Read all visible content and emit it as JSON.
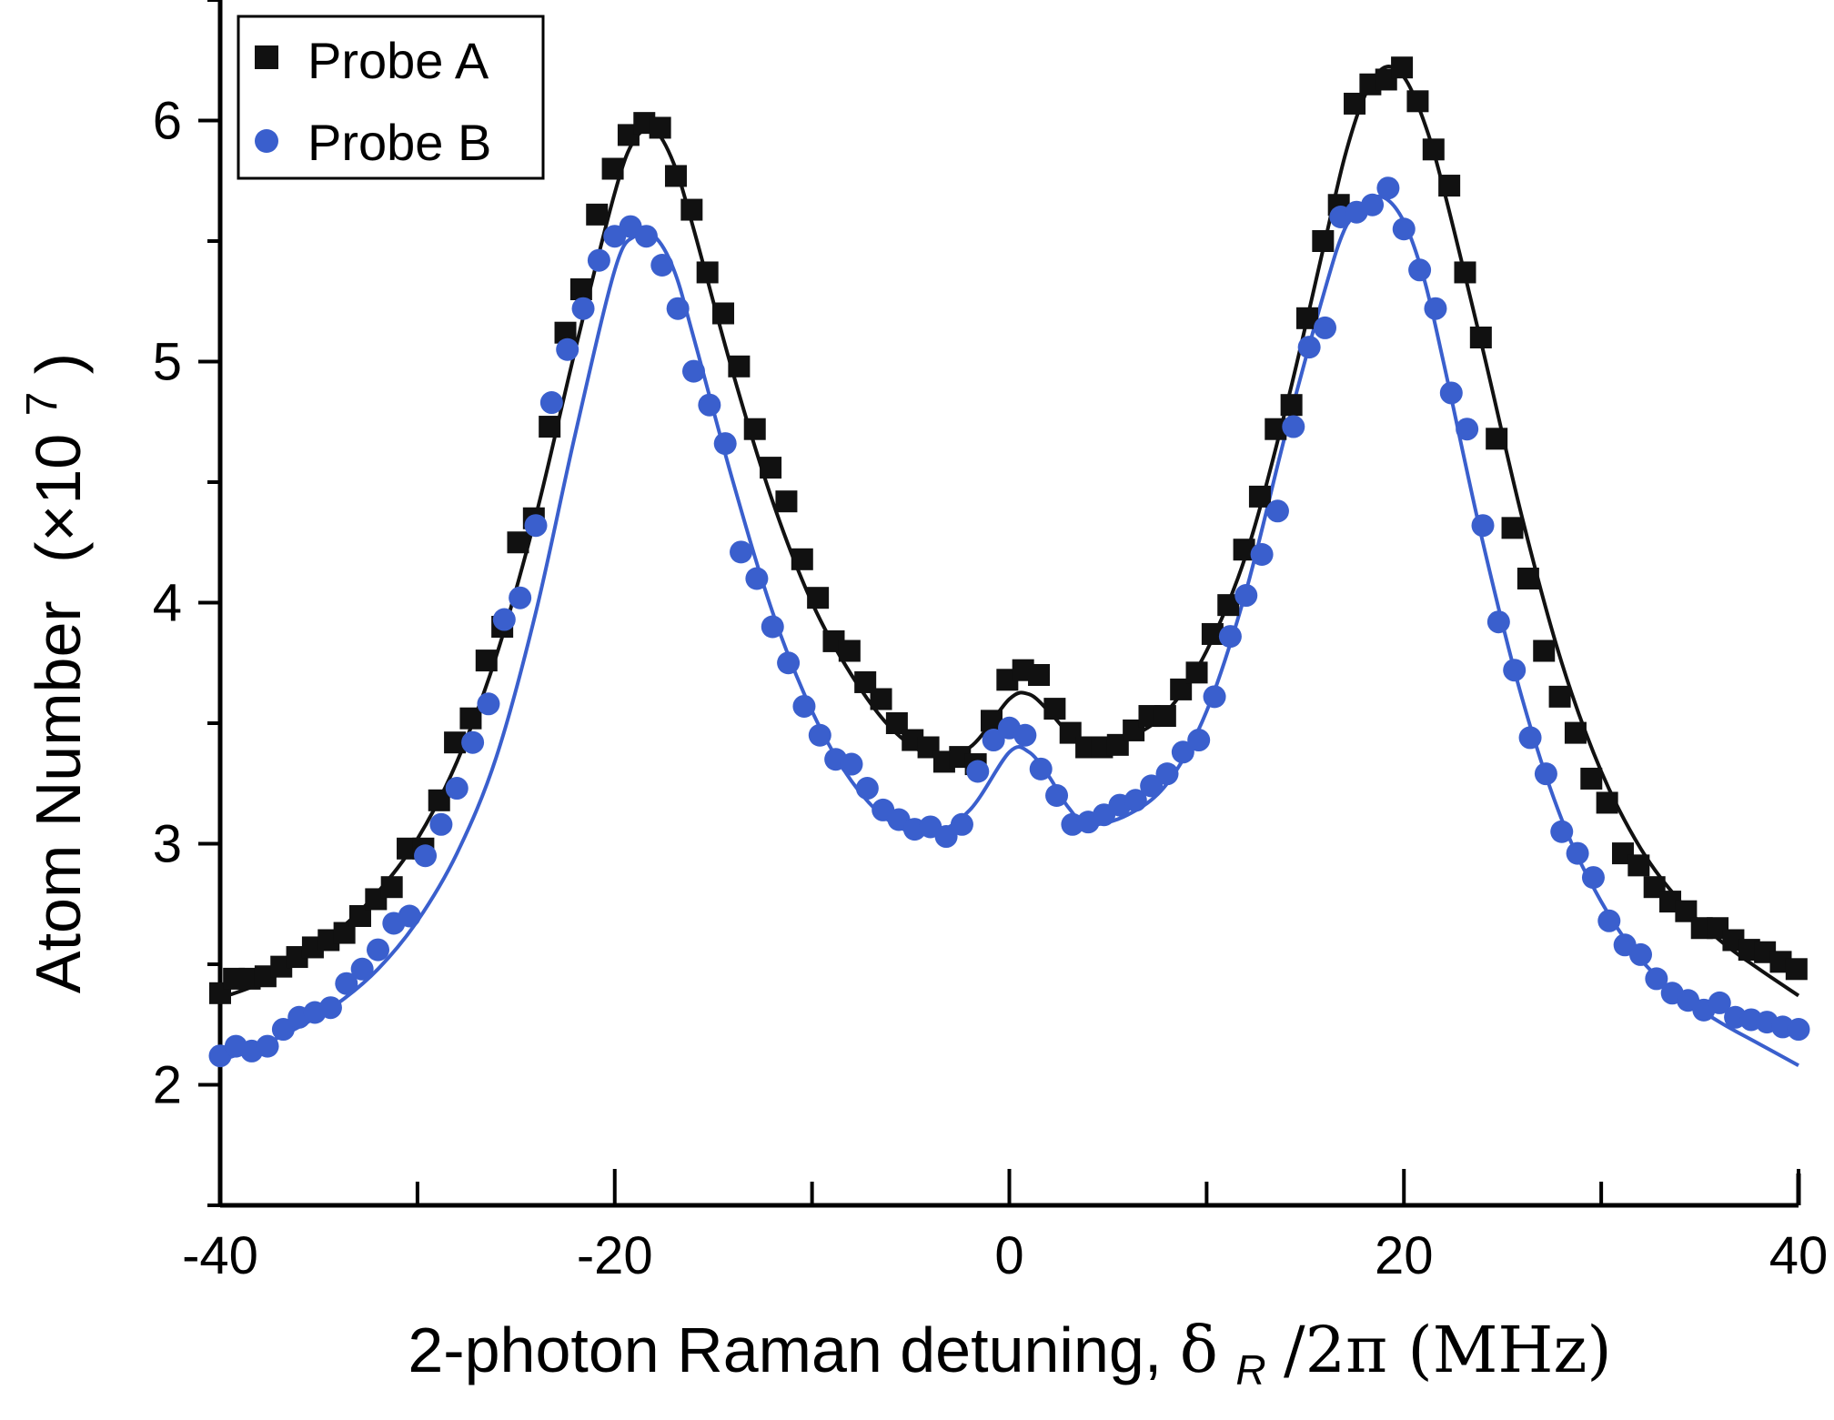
{
  "chart_data": {
    "type": "scatter",
    "xlabel": "2-photon Raman detuning, δ_R/2π (MHz)",
    "xlabel_parts": {
      "pre": "2-photon Raman detuning, ",
      "delta": "δ",
      "sub": "R",
      "post": "/2π (MHz)"
    },
    "ylabel": "Atom Number (×10^7)",
    "ylabel_parts": {
      "main": "Atom Number",
      "open": "(×10",
      "sup": "7",
      "close": ")"
    },
    "xlim": [
      -40,
      40
    ],
    "ylim": [
      1.5,
      6.5
    ],
    "xticks": [
      -40,
      -20,
      0,
      20,
      40
    ],
    "xtick_labels": [
      "-40",
      "-20",
      "0",
      "20",
      "40"
    ],
    "yticks": [
      2,
      3,
      4,
      5,
      6
    ],
    "ytick_labels": [
      "2",
      "3",
      "4",
      "5",
      "6"
    ],
    "grid": false,
    "legend_position": "top-left",
    "series": [
      {
        "name": "Probe A",
        "marker": "square",
        "color": "#111111",
        "points": [
          [
            -40,
            2.38
          ],
          [
            -39.3,
            2.44
          ],
          [
            -38.5,
            2.44
          ],
          [
            -37.7,
            2.45
          ],
          [
            -36.9,
            2.49
          ],
          [
            -36.1,
            2.53
          ],
          [
            -35.3,
            2.57
          ],
          [
            -34.5,
            2.6
          ],
          [
            -33.7,
            2.63
          ],
          [
            -32.9,
            2.7
          ],
          [
            -32.1,
            2.77
          ],
          [
            -31.3,
            2.82
          ],
          [
            -30.5,
            2.98
          ],
          [
            -29.7,
            2.98
          ],
          [
            -28.9,
            3.18
          ],
          [
            -28.1,
            3.42
          ],
          [
            -27.3,
            3.52
          ],
          [
            -26.5,
            3.76
          ],
          [
            -25.7,
            3.9
          ],
          [
            -24.9,
            4.25
          ],
          [
            -24.1,
            4.35
          ],
          [
            -23.3,
            4.73
          ],
          [
            -22.5,
            5.12
          ],
          [
            -21.7,
            5.3
          ],
          [
            -20.9,
            5.61
          ],
          [
            -20.1,
            5.8
          ],
          [
            -19.3,
            5.94
          ],
          [
            -18.5,
            5.99
          ],
          [
            -17.7,
            5.97
          ],
          [
            -16.9,
            5.77
          ],
          [
            -16.1,
            5.63
          ],
          [
            -15.3,
            5.37
          ],
          [
            -14.5,
            5.2
          ],
          [
            -13.7,
            4.98
          ],
          [
            -12.9,
            4.72
          ],
          [
            -12.1,
            4.56
          ],
          [
            -11.3,
            4.42
          ],
          [
            -10.5,
            4.18
          ],
          [
            -9.7,
            4.02
          ],
          [
            -8.9,
            3.84
          ],
          [
            -8.1,
            3.8
          ],
          [
            -7.3,
            3.67
          ],
          [
            -6.5,
            3.6
          ],
          [
            -5.7,
            3.5
          ],
          [
            -4.9,
            3.43
          ],
          [
            -4.1,
            3.4
          ],
          [
            -3.3,
            3.34
          ],
          [
            -2.5,
            3.36
          ],
          [
            -1.7,
            3.33
          ],
          [
            -0.9,
            3.51
          ],
          [
            -0.1,
            3.68
          ],
          [
            0.7,
            3.72
          ],
          [
            1.5,
            3.7
          ],
          [
            2.3,
            3.56
          ],
          [
            3.1,
            3.46
          ],
          [
            3.9,
            3.4
          ],
          [
            4.7,
            3.4
          ],
          [
            5.5,
            3.41
          ],
          [
            6.3,
            3.47
          ],
          [
            7.1,
            3.53
          ],
          [
            7.9,
            3.53
          ],
          [
            8.7,
            3.64
          ],
          [
            9.5,
            3.71
          ],
          [
            10.3,
            3.87
          ],
          [
            11.1,
            3.99
          ],
          [
            11.9,
            4.22
          ],
          [
            12.7,
            4.44
          ],
          [
            13.5,
            4.72
          ],
          [
            14.3,
            4.82
          ],
          [
            15.1,
            5.18
          ],
          [
            15.9,
            5.5
          ],
          [
            16.7,
            5.65
          ],
          [
            17.5,
            6.07
          ],
          [
            18.3,
            6.15
          ],
          [
            19.1,
            6.17
          ],
          [
            19.9,
            6.22
          ],
          [
            20.7,
            6.08
          ],
          [
            21.5,
            5.88
          ],
          [
            22.3,
            5.73
          ],
          [
            23.1,
            5.37
          ],
          [
            23.9,
            5.1
          ],
          [
            24.7,
            4.68
          ],
          [
            25.5,
            4.31
          ],
          [
            26.3,
            4.1
          ],
          [
            27.1,
            3.8
          ],
          [
            27.9,
            3.61
          ],
          [
            28.7,
            3.46
          ],
          [
            29.5,
            3.27
          ],
          [
            30.3,
            3.17
          ],
          [
            31.1,
            2.96
          ],
          [
            31.9,
            2.91
          ],
          [
            32.7,
            2.82
          ],
          [
            33.5,
            2.76
          ],
          [
            34.3,
            2.72
          ],
          [
            35.1,
            2.65
          ],
          [
            35.9,
            2.65
          ],
          [
            36.7,
            2.6
          ],
          [
            37.5,
            2.56
          ],
          [
            38.3,
            2.55
          ],
          [
            39.1,
            2.51
          ],
          [
            39.9,
            2.48
          ]
        ]
      },
      {
        "name": "Probe B",
        "marker": "circle",
        "color": "#3a5fcd",
        "points": [
          [
            -40,
            2.12
          ],
          [
            -39.2,
            2.16
          ],
          [
            -38.4,
            2.14
          ],
          [
            -37.6,
            2.16
          ],
          [
            -36.8,
            2.23
          ],
          [
            -36,
            2.28
          ],
          [
            -35.2,
            2.3
          ],
          [
            -34.4,
            2.32
          ],
          [
            -33.6,
            2.42
          ],
          [
            -32.8,
            2.48
          ],
          [
            -32,
            2.56
          ],
          [
            -31.2,
            2.67
          ],
          [
            -30.4,
            2.7
          ],
          [
            -29.6,
            2.95
          ],
          [
            -28.8,
            3.08
          ],
          [
            -28,
            3.23
          ],
          [
            -27.2,
            3.42
          ],
          [
            -26.4,
            3.58
          ],
          [
            -25.6,
            3.93
          ],
          [
            -24.8,
            4.02
          ],
          [
            -24,
            4.32
          ],
          [
            -23.2,
            4.83
          ],
          [
            -22.4,
            5.05
          ],
          [
            -21.6,
            5.22
          ],
          [
            -20.8,
            5.42
          ],
          [
            -20,
            5.52
          ],
          [
            -19.2,
            5.56
          ],
          [
            -18.4,
            5.52
          ],
          [
            -17.6,
            5.4
          ],
          [
            -16.8,
            5.22
          ],
          [
            -16,
            4.96
          ],
          [
            -15.2,
            4.82
          ],
          [
            -14.4,
            4.66
          ],
          [
            -13.6,
            4.21
          ],
          [
            -12.8,
            4.1
          ],
          [
            -12,
            3.9
          ],
          [
            -11.2,
            3.75
          ],
          [
            -10.4,
            3.57
          ],
          [
            -9.6,
            3.45
          ],
          [
            -8.8,
            3.35
          ],
          [
            -8,
            3.33
          ],
          [
            -7.2,
            3.23
          ],
          [
            -6.4,
            3.14
          ],
          [
            -5.6,
            3.1
          ],
          [
            -4.8,
            3.06
          ],
          [
            -4,
            3.07
          ],
          [
            -3.2,
            3.03
          ],
          [
            -2.4,
            3.08
          ],
          [
            -1.6,
            3.3
          ],
          [
            -0.8,
            3.43
          ],
          [
            0,
            3.48
          ],
          [
            0.8,
            3.45
          ],
          [
            1.6,
            3.31
          ],
          [
            2.4,
            3.2
          ],
          [
            3.2,
            3.08
          ],
          [
            4,
            3.09
          ],
          [
            4.8,
            3.12
          ],
          [
            5.6,
            3.16
          ],
          [
            6.4,
            3.18
          ],
          [
            7.2,
            3.24
          ],
          [
            8,
            3.29
          ],
          [
            8.8,
            3.38
          ],
          [
            9.6,
            3.43
          ],
          [
            10.4,
            3.61
          ],
          [
            11.2,
            3.86
          ],
          [
            12,
            4.03
          ],
          [
            12.8,
            4.2
          ],
          [
            13.6,
            4.38
          ],
          [
            14.4,
            4.73
          ],
          [
            15.2,
            5.06
          ],
          [
            16,
            5.14
          ],
          [
            16.8,
            5.6
          ],
          [
            17.6,
            5.62
          ],
          [
            18.4,
            5.65
          ],
          [
            19.2,
            5.72
          ],
          [
            20,
            5.55
          ],
          [
            20.8,
            5.38
          ],
          [
            21.6,
            5.22
          ],
          [
            22.4,
            4.87
          ],
          [
            23.2,
            4.72
          ],
          [
            24,
            4.32
          ],
          [
            24.8,
            3.92
          ],
          [
            25.6,
            3.72
          ],
          [
            26.4,
            3.44
          ],
          [
            27.2,
            3.29
          ],
          [
            28,
            3.05
          ],
          [
            28.8,
            2.96
          ],
          [
            29.6,
            2.86
          ],
          [
            30.4,
            2.68
          ],
          [
            31.2,
            2.58
          ],
          [
            32,
            2.54
          ],
          [
            32.8,
            2.44
          ],
          [
            33.6,
            2.38
          ],
          [
            34.4,
            2.35
          ],
          [
            35.2,
            2.31
          ],
          [
            36,
            2.34
          ],
          [
            36.8,
            2.28
          ],
          [
            37.6,
            2.27
          ],
          [
            38.4,
            2.26
          ],
          [
            39.2,
            2.24
          ],
          [
            40,
            2.23
          ]
        ]
      }
    ],
    "fit_curves": [
      {
        "series": "Probe A",
        "color": "#111111",
        "points": [
          [
            -40,
            2.36
          ],
          [
            -38,
            2.42
          ],
          [
            -36,
            2.52
          ],
          [
            -34,
            2.64
          ],
          [
            -32,
            2.8
          ],
          [
            -30,
            3.02
          ],
          [
            -28,
            3.34
          ],
          [
            -26,
            3.78
          ],
          [
            -24,
            4.36
          ],
          [
            -22,
            5.05
          ],
          [
            -20,
            5.7
          ],
          [
            -19,
            5.92
          ],
          [
            -18,
            5.96
          ],
          [
            -17,
            5.82
          ],
          [
            -16,
            5.55
          ],
          [
            -14,
            4.95
          ],
          [
            -12,
            4.42
          ],
          [
            -10,
            4.0
          ],
          [
            -8,
            3.7
          ],
          [
            -6,
            3.48
          ],
          [
            -4,
            3.37
          ],
          [
            -2,
            3.4
          ],
          [
            0,
            3.6
          ],
          [
            1,
            3.62
          ],
          [
            2,
            3.55
          ],
          [
            3,
            3.46
          ],
          [
            4,
            3.42
          ],
          [
            6,
            3.44
          ],
          [
            8,
            3.55
          ],
          [
            10,
            3.8
          ],
          [
            12,
            4.2
          ],
          [
            14,
            4.8
          ],
          [
            16,
            5.5
          ],
          [
            17,
            5.85
          ],
          [
            18,
            6.1
          ],
          [
            19,
            6.22
          ],
          [
            20,
            6.18
          ],
          [
            21,
            6.0
          ],
          [
            22,
            5.72
          ],
          [
            24,
            5.05
          ],
          [
            26,
            4.35
          ],
          [
            28,
            3.75
          ],
          [
            30,
            3.3
          ],
          [
            32,
            2.98
          ],
          [
            34,
            2.76
          ],
          [
            36,
            2.6
          ],
          [
            38,
            2.48
          ],
          [
            40,
            2.37
          ]
        ]
      },
      {
        "series": "Probe B",
        "color": "#3a5fcd",
        "points": [
          [
            -40,
            2.1
          ],
          [
            -38,
            2.16
          ],
          [
            -36,
            2.24
          ],
          [
            -34,
            2.34
          ],
          [
            -32,
            2.48
          ],
          [
            -30,
            2.68
          ],
          [
            -28,
            2.96
          ],
          [
            -26,
            3.36
          ],
          [
            -24,
            3.96
          ],
          [
            -22,
            4.7
          ],
          [
            -20,
            5.38
          ],
          [
            -19,
            5.52
          ],
          [
            -18,
            5.52
          ],
          [
            -17,
            5.38
          ],
          [
            -16,
            5.1
          ],
          [
            -14,
            4.5
          ],
          [
            -12,
            3.96
          ],
          [
            -10,
            3.55
          ],
          [
            -8,
            3.26
          ],
          [
            -6,
            3.09
          ],
          [
            -4,
            3.04
          ],
          [
            -2,
            3.14
          ],
          [
            0,
            3.38
          ],
          [
            1,
            3.38
          ],
          [
            2,
            3.28
          ],
          [
            3,
            3.15
          ],
          [
            4,
            3.08
          ],
          [
            6,
            3.12
          ],
          [
            8,
            3.25
          ],
          [
            10,
            3.55
          ],
          [
            12,
            4.05
          ],
          [
            14,
            4.7
          ],
          [
            16,
            5.3
          ],
          [
            17,
            5.55
          ],
          [
            18,
            5.66
          ],
          [
            19,
            5.68
          ],
          [
            20,
            5.58
          ],
          [
            21,
            5.35
          ],
          [
            22,
            5.0
          ],
          [
            24,
            4.25
          ],
          [
            26,
            3.6
          ],
          [
            28,
            3.1
          ],
          [
            30,
            2.76
          ],
          [
            32,
            2.52
          ],
          [
            34,
            2.37
          ],
          [
            36,
            2.26
          ],
          [
            38,
            2.17
          ],
          [
            40,
            2.08
          ]
        ]
      }
    ]
  }
}
